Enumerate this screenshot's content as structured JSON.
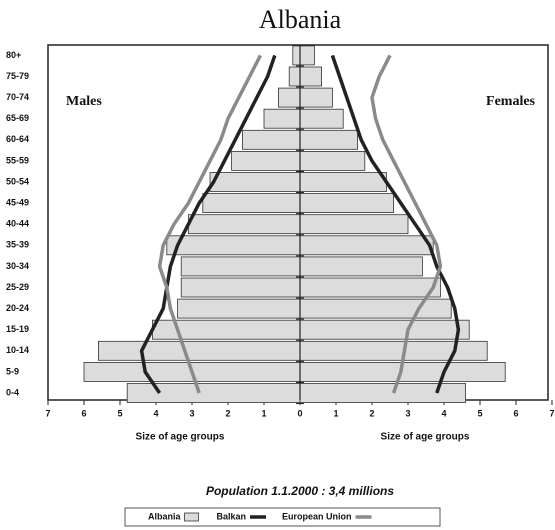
{
  "chart_data": {
    "type": "pyramid",
    "title": "Albania",
    "left_label": "Males",
    "right_label": "Females",
    "x_label": "Size of age groups",
    "note": "Population 1.1.2000 : 3,4 millions",
    "categories": [
      "0-4",
      "5-9",
      "10-14",
      "15-19",
      "20-24",
      "25-29",
      "30-34",
      "35-39",
      "40-44",
      "45-49",
      "50-54",
      "55-59",
      "60-64",
      "65-69",
      "70-74",
      "75-79",
      "80+"
    ],
    "xlim": [
      0,
      7
    ],
    "xticks": [
      0,
      1,
      2,
      3,
      4,
      5,
      6,
      7
    ],
    "series": [
      {
        "name": "Albania",
        "color": "#dcdcdc",
        "style": "bar",
        "males": [
          4.8,
          6.0,
          5.6,
          4.1,
          3.4,
          3.3,
          3.3,
          3.7,
          3.1,
          2.7,
          2.5,
          1.9,
          1.6,
          1.0,
          0.6,
          0.3,
          0.2
        ],
        "females": [
          4.6,
          5.7,
          5.2,
          4.7,
          4.2,
          3.9,
          3.4,
          3.7,
          3.0,
          2.6,
          2.4,
          1.8,
          1.6,
          1.2,
          0.9,
          0.6,
          0.4
        ]
      },
      {
        "name": "Balkan",
        "color": "#222222",
        "style": "line",
        "males": [
          3.9,
          4.3,
          4.4,
          4.1,
          3.8,
          3.7,
          3.6,
          3.4,
          3.1,
          2.8,
          2.4,
          2.1,
          1.8,
          1.5,
          1.2,
          0.9,
          0.7
        ],
        "females": [
          3.8,
          4.0,
          4.3,
          4.4,
          4.3,
          4.1,
          3.8,
          3.6,
          3.2,
          2.8,
          2.4,
          2.0,
          1.7,
          1.5,
          1.3,
          1.1,
          0.9
        ]
      },
      {
        "name": "European Union",
        "color": "#8a8a8a",
        "style": "line",
        "males": [
          2.8,
          3.0,
          3.2,
          3.4,
          3.6,
          3.7,
          3.9,
          3.8,
          3.5,
          3.1,
          2.8,
          2.5,
          2.2,
          2.0,
          1.7,
          1.4,
          1.1
        ],
        "females": [
          2.6,
          2.8,
          2.9,
          3.0,
          3.3,
          3.7,
          3.9,
          3.8,
          3.5,
          3.2,
          2.9,
          2.6,
          2.3,
          2.1,
          2.0,
          2.2,
          2.5
        ]
      }
    ]
  }
}
